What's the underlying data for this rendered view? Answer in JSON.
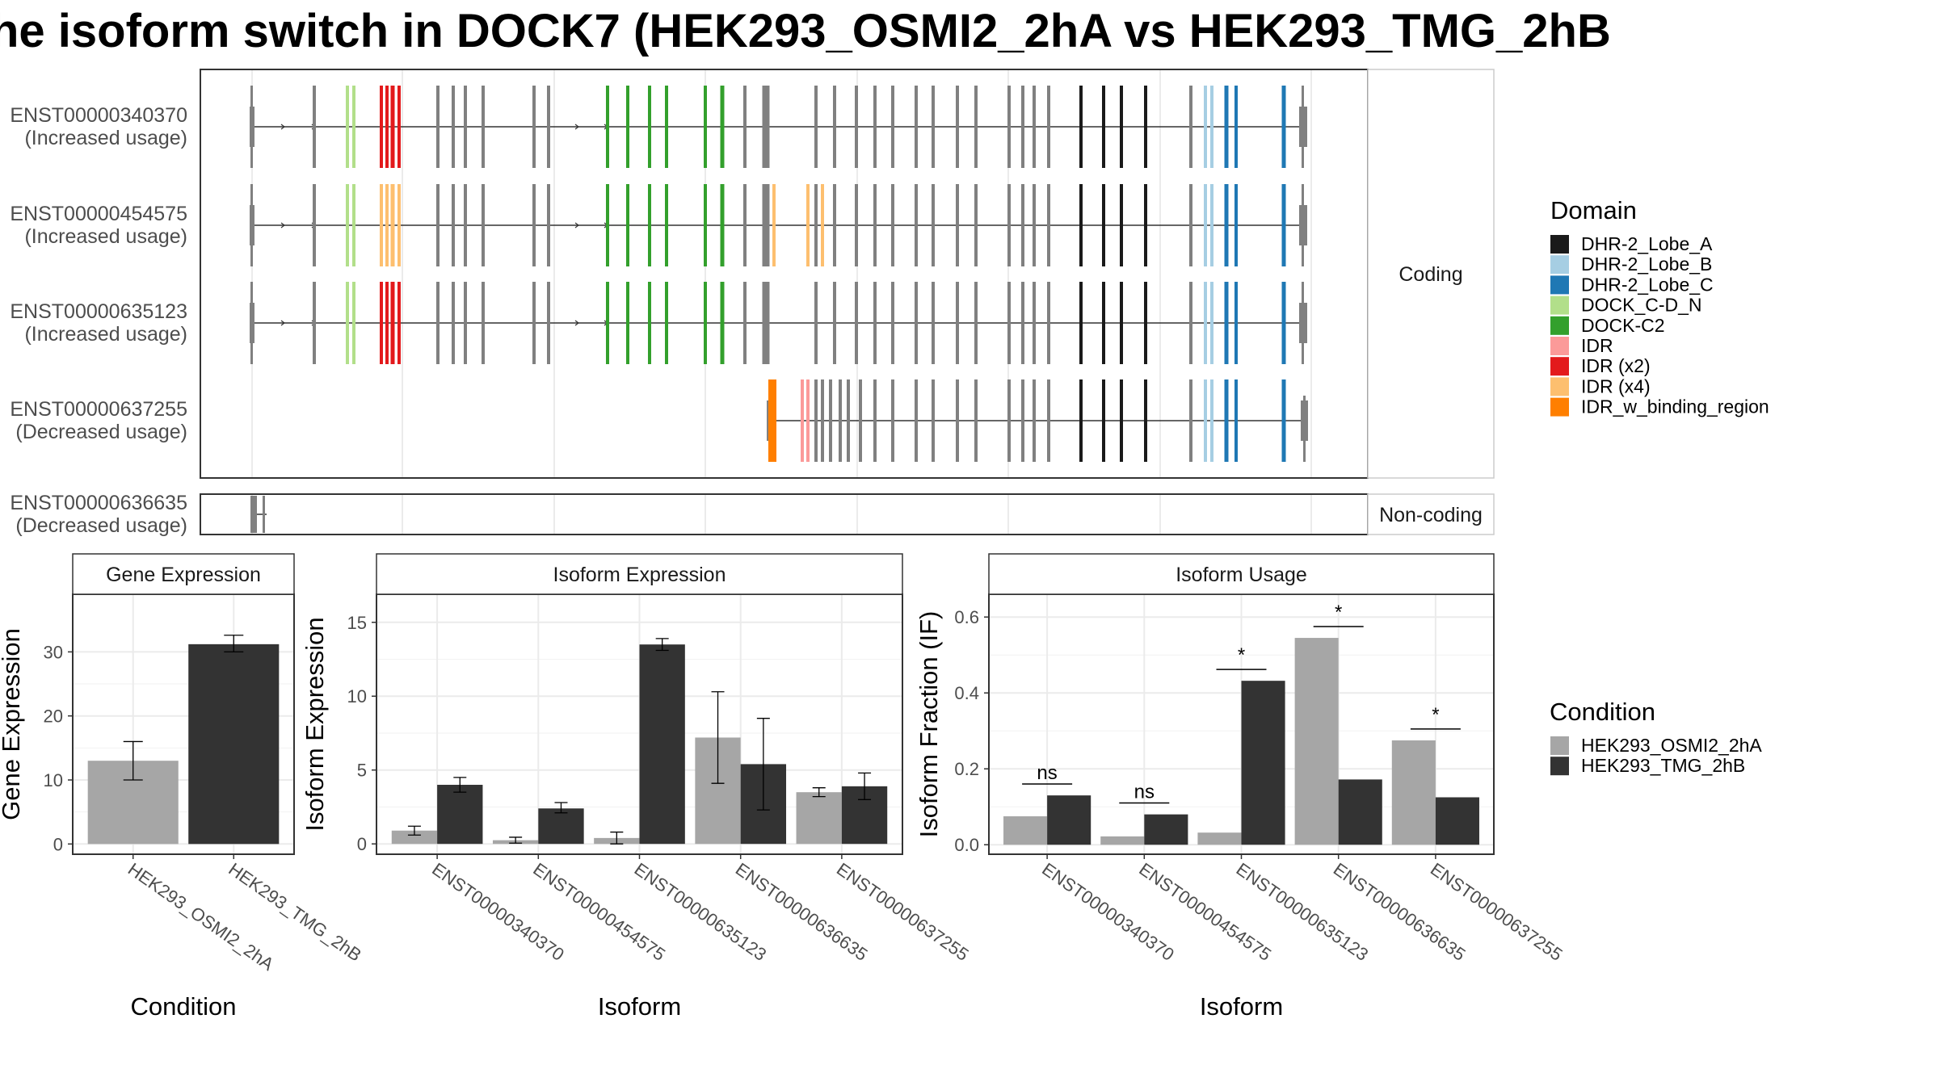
{
  "title": "he isoform switch in DOCK7 (HEK293_OSMI2_2hA vs HEK293_TMG_2hB",
  "transcripts": [
    {
      "id": "ENST00000340370",
      "usage": "(Increased usage)",
      "group": "coding"
    },
    {
      "id": "ENST00000454575",
      "usage": "(Increased usage)",
      "group": "coding"
    },
    {
      "id": "ENST00000635123",
      "usage": "(Increased usage)",
      "group": "coding"
    },
    {
      "id": "ENST00000637255",
      "usage": "(Decreased usage)",
      "group": "coding"
    },
    {
      "id": "ENST00000636635",
      "usage": "(Decreased usage)",
      "group": "noncoding"
    }
  ],
  "strips": {
    "coding": "Coding",
    "noncoding": "Non-coding"
  },
  "domain_legend": {
    "title": "Domain",
    "items": [
      {
        "label": "DHR-2_Lobe_A",
        "color": "#1a1a1a"
      },
      {
        "label": "DHR-2_Lobe_B",
        "color": "#a6cee3"
      },
      {
        "label": "DHR-2_Lobe_C",
        "color": "#1f78b4"
      },
      {
        "label": "DOCK_C-D_N",
        "color": "#b2df8a"
      },
      {
        "label": "DOCK-C2",
        "color": "#33a02c"
      },
      {
        "label": "IDR",
        "color": "#fb9a99"
      },
      {
        "label": "IDR (x2)",
        "color": "#e31a1c"
      },
      {
        "label": "IDR (x4)",
        "color": "#fdbf6f"
      },
      {
        "label": "IDR_w_binding_region",
        "color": "#ff7f00"
      }
    ]
  },
  "condition_legend": {
    "title": "Condition",
    "items": [
      {
        "label": "HEK293_OSMI2_2hA",
        "color": "#a6a6a6"
      },
      {
        "label": "HEK293_TMG_2hB",
        "color": "#333333"
      }
    ]
  },
  "chart_data": [
    {
      "type": "bar",
      "title": "Gene Expression",
      "xlabel": "Condition",
      "ylabel": "Gene Expression",
      "categories": [
        "HEK293_OSMI2_2hA",
        "HEK293_TMG_2hB"
      ],
      "values": [
        13.0,
        31.2
      ],
      "errors": [
        [
          10.0,
          16.0
        ],
        [
          30.0,
          32.6
        ]
      ],
      "colors": [
        "#a6a6a6",
        "#333333"
      ],
      "ylim": [
        -1.6,
        39
      ],
      "yticks": [
        0,
        10,
        20,
        30
      ]
    },
    {
      "type": "bar",
      "title": "Isoform Expression",
      "xlabel": "Isoform",
      "ylabel": "Isoform Expression",
      "categories": [
        "ENST00000340370",
        "ENST00000454575",
        "ENST00000635123",
        "ENST00000636635",
        "ENST00000637255"
      ],
      "series": [
        {
          "name": "HEK293_OSMI2_2hA",
          "values": [
            0.9,
            0.25,
            0.4,
            7.2,
            3.5
          ],
          "errors": [
            [
              0.6,
              1.2
            ],
            [
              0.05,
              0.45
            ],
            [
              0.0,
              0.8
            ],
            [
              4.1,
              10.3
            ],
            [
              3.2,
              3.8
            ]
          ]
        },
        {
          "name": "HEK293_TMG_2hB",
          "values": [
            4.0,
            2.4,
            13.5,
            5.4,
            3.9
          ],
          "errors": [
            [
              3.5,
              4.5
            ],
            [
              2.1,
              2.8
            ],
            [
              13.1,
              13.9
            ],
            [
              2.3,
              8.5
            ],
            [
              3.0,
              4.8
            ]
          ]
        }
      ],
      "ylim": [
        -0.7,
        16.9
      ],
      "yticks": [
        0,
        5,
        10,
        15
      ]
    },
    {
      "type": "bar",
      "title": "Isoform Usage",
      "xlabel": "Isoform",
      "ylabel": "Isoform Fraction (IF)",
      "categories": [
        "ENST00000340370",
        "ENST00000454575",
        "ENST00000635123",
        "ENST00000636635",
        "ENST00000637255"
      ],
      "series": [
        {
          "name": "HEK293_OSMI2_2hA",
          "values": [
            0.075,
            0.022,
            0.032,
            0.545,
            0.275
          ]
        },
        {
          "name": "HEK293_TMG_2hB",
          "values": [
            0.13,
            0.08,
            0.432,
            0.172,
            0.125
          ]
        }
      ],
      "significance": [
        "ns",
        "ns",
        "*",
        "*",
        "*"
      ],
      "ylim": [
        -0.025,
        0.66
      ],
      "yticks": [
        0.0,
        0.2,
        0.4,
        0.6
      ]
    }
  ]
}
